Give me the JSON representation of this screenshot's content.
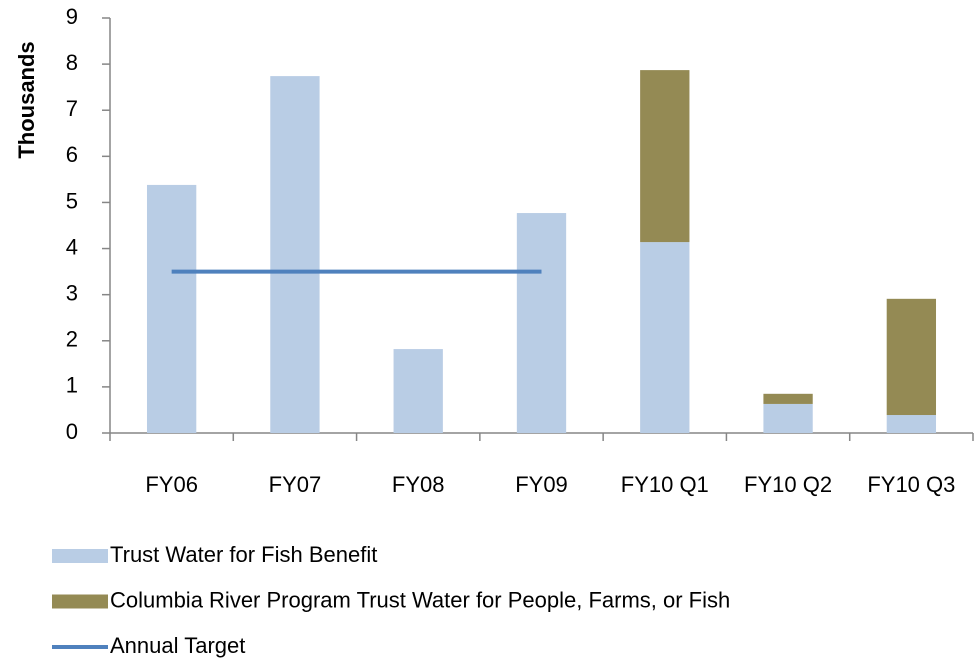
{
  "chart_data": {
    "type": "bar",
    "stacked": true,
    "y_label": "Thousands",
    "categories": [
      "FY06",
      "FY07",
      "FY08",
      "FY09",
      "FY10 Q1",
      "FY10 Q2",
      "FY10 Q3"
    ],
    "series": [
      {
        "name": "Trust Water for Fish Benefit",
        "type": "bar",
        "color": "#b9cde5",
        "values": [
          5.38,
          7.74,
          1.82,
          4.77,
          4.14,
          0.63,
          0.39
        ]
      },
      {
        "name": "Columbia River Program Trust Water for People,  Farms, or Fish",
        "type": "bar",
        "color": "#948a54",
        "values": [
          null,
          null,
          null,
          null,
          3.73,
          0.22,
          2.52
        ]
      },
      {
        "name": "Annual Target",
        "type": "line",
        "color": "#4f81bd",
        "values": [
          3.5,
          3.5,
          3.5,
          3.5,
          null,
          null,
          null
        ]
      }
    ],
    "ylim": [
      0,
      9
    ],
    "yticks": [
      0,
      1,
      2,
      3,
      4,
      5,
      6,
      7,
      8,
      9
    ],
    "grid": false,
    "legend": "bottom"
  }
}
